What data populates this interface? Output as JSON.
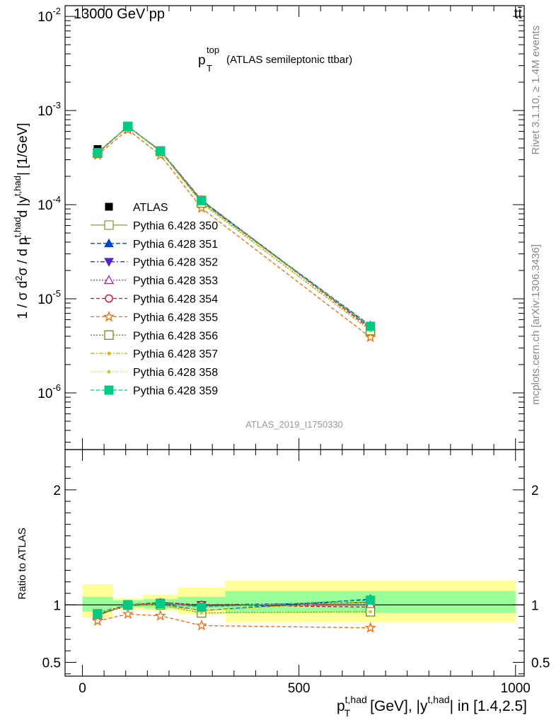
{
  "header": {
    "left": "13000 GeV pp",
    "right": "tt̄"
  },
  "side": {
    "rivet": "Rivet 3.1.10, ≥ 1.4M events",
    "mcplots": "mcplots.cern.ch [arXiv:1306.3436]"
  },
  "plot_title": {
    "main": "p",
    "sup": "top",
    "sub": "T",
    "rest": "(ATLAS semileptonic ttbar)"
  },
  "analysis_id": "ATLAS_2019_I1750330",
  "colors": {
    "atlas": "#000000",
    "band_inner": "#99ff99",
    "band_outer": "#ffff99",
    "s350": "#999933",
    "s351": "#0044cc",
    "s352": "#5522cc",
    "s353": "#aa22aa",
    "s354": "#dd0022",
    "s355": "#ff6600",
    "s356": "#669900",
    "s357": "#ddbb00",
    "s358": "#cccc22",
    "s359": "#00cc88"
  },
  "chart_data": [
    {
      "type": "scatter",
      "panel": "main",
      "title": "p_T^top (ATLAS semileptonic ttbar)",
      "xlabel": "p_T^{t,had} [GeV], |y^{t,had}| in [1.4,2.5]",
      "ylabel": "1 / σ d²σ / d p_T^{t,had} d |y^{t,had}| [1/GeV]",
      "xlim": [
        -40,
        1020
      ],
      "ylim": [
        2.5e-07,
        0.013
      ],
      "yscale": "log",
      "ytick_labels": [
        "10^-6",
        "10^-5",
        "10^-4",
        "10^-3",
        "10^-2"
      ],
      "x": [
        35,
        105,
        180,
        275,
        665
      ],
      "x_bin_edges": [
        0,
        70,
        140,
        220,
        330,
        1000
      ],
      "legend_position": "left",
      "series": [
        {
          "name": "ATLAS",
          "key": "atlas",
          "marker": "square-filled",
          "dash": "none",
          "values": [
            0.00039,
            0.00068,
            0.00037,
            0.000112,
            4.9e-06
          ]
        },
        {
          "name": "Pythia 6.428 350",
          "key": "s350",
          "marker": "square-open",
          "dash": "solid",
          "values": [
            0.000352,
            0.000678,
            0.000372,
            0.000111,
            5e-06
          ]
        },
        {
          "name": "Pythia 6.428 351",
          "key": "s351",
          "marker": "triangle-up-filled",
          "dash": "6,3",
          "values": [
            0.000355,
            0.000675,
            0.000372,
            0.000108,
            5.2e-06
          ]
        },
        {
          "name": "Pythia 6.428 352",
          "key": "s352",
          "marker": "triangle-down-filled",
          "dash": "6,3,2,3",
          "values": [
            0.00036,
            0.00068,
            0.000376,
            0.000112,
            5e-06
          ]
        },
        {
          "name": "Pythia 6.428 353",
          "key": "s353",
          "marker": "triangle-up-open",
          "dash": "2,2",
          "values": [
            0.000352,
            0.000678,
            0.000372,
            0.000111,
            4.9e-06
          ]
        },
        {
          "name": "Pythia 6.428 354",
          "key": "s354",
          "marker": "circle-open",
          "dash": "5,3",
          "values": [
            0.000352,
            0.000678,
            0.000374,
            0.000112,
            4.8e-06
          ]
        },
        {
          "name": "Pythia 6.428 355",
          "key": "s355",
          "marker": "star-open",
          "dash": "5,3",
          "values": [
            0.000336,
            0.000627,
            0.000336,
            9.2e-05,
            3.9e-06
          ]
        },
        {
          "name": "Pythia 6.428 356",
          "key": "s356",
          "marker": "square-open",
          "dash": "2,2",
          "values": [
            0.000356,
            0.000678,
            0.000368,
            0.000104,
            4.6e-06
          ]
        },
        {
          "name": "Pythia 6.428 357",
          "key": "s357",
          "marker": "dot",
          "dash": "6,2,2,2",
          "values": [
            0.00036,
            0.000675,
            0.00037,
            0.000106,
            5e-06
          ]
        },
        {
          "name": "Pythia 6.428 358",
          "key": "s358",
          "marker": "dot",
          "dash": "1,2",
          "values": [
            0.000358,
            0.000672,
            0.000366,
            0.000104,
            4.6e-06
          ]
        },
        {
          "name": "Pythia 6.428 359",
          "key": "s359",
          "marker": "square-filled",
          "dash": "5,3",
          "values": [
            0.000356,
            0.000679,
            0.000372,
            0.00011,
            5.1e-06
          ]
        }
      ]
    },
    {
      "type": "scatter",
      "panel": "ratio",
      "ylabel": "Ratio to ATLAS",
      "xlim": [
        -40,
        1020
      ],
      "ylim": [
        0.38,
        2.35
      ],
      "ytick_labels": [
        "0.5",
        "1",
        "2"
      ],
      "xtick_labels": [
        "0",
        "500",
        "1000"
      ],
      "x": [
        35,
        105,
        180,
        275,
        665
      ],
      "bands": {
        "bin_edges": [
          0,
          70,
          140,
          220,
          330,
          1000
        ],
        "inner_low": [
          0.94,
          0.98,
          0.97,
          0.97,
          0.93
        ],
        "inner_high": [
          1.07,
          1.04,
          1.05,
          1.07,
          1.12
        ],
        "outer_low": [
          0.89,
          0.96,
          0.95,
          0.92,
          0.85
        ],
        "outer_high": [
          1.18,
          1.06,
          1.09,
          1.15,
          1.21
        ]
      },
      "reference_line": 1,
      "series": [
        {
          "key": "s350",
          "values": [
            0.91,
            1.0,
            1.01,
            0.99,
            1.02
          ]
        },
        {
          "key": "s351",
          "values": [
            0.92,
            0.99,
            1.01,
            0.95,
            1.05
          ]
        },
        {
          "key": "s352",
          "values": [
            0.93,
            1.0,
            1.02,
            1.0,
            1.02
          ]
        },
        {
          "key": "s353",
          "values": [
            0.91,
            1.0,
            1.01,
            0.99,
            1.0
          ]
        },
        {
          "key": "s354",
          "values": [
            0.91,
            1.0,
            1.02,
            1.0,
            0.98
          ]
        },
        {
          "key": "s355",
          "values": [
            0.86,
            0.92,
            0.905,
            0.82,
            0.8
          ]
        },
        {
          "key": "s356",
          "values": [
            0.92,
            1.0,
            1.0,
            0.93,
            0.94
          ]
        },
        {
          "key": "s357",
          "values": [
            0.93,
            0.99,
            1.0,
            0.95,
            1.03
          ]
        },
        {
          "key": "s358",
          "values": [
            0.92,
            0.99,
            0.99,
            0.93,
            0.94
          ]
        },
        {
          "key": "s359",
          "values": [
            0.92,
            1.0,
            1.01,
            0.98,
            1.04
          ]
        }
      ]
    }
  ]
}
